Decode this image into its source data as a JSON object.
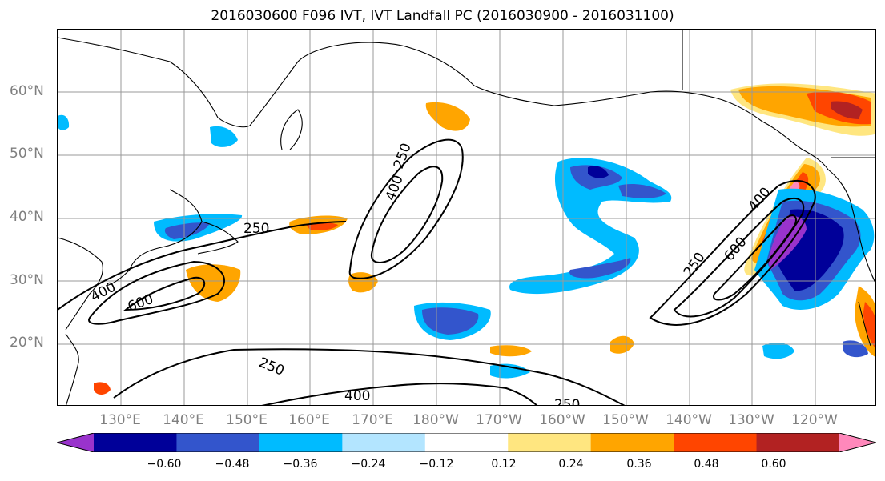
{
  "title": "2016030600 F096 IVT, IVT Landfall PC (2016030900 - 2016031100)",
  "axes": {
    "lat_labels": [
      "60°N",
      "50°N",
      "40°N",
      "30°N",
      "20°N"
    ],
    "lon_labels": [
      "130°E",
      "140°E",
      "150°E",
      "160°E",
      "170°E",
      "180°W",
      "170°W",
      "160°W",
      "150°W",
      "140°W",
      "130°W",
      "120°W"
    ]
  },
  "contours": {
    "labels": [
      "250",
      "400",
      "250",
      "400",
      "600",
      "250",
      "250",
      "400",
      "250",
      "250",
      "600",
      "400"
    ]
  },
  "colorbar": {
    "tick_labels": [
      "−0.60",
      "−0.48",
      "−0.36",
      "−0.24",
      "−0.12",
      "0.12",
      "0.24",
      "0.36",
      "0.48",
      "0.60"
    ],
    "colors": [
      "#9933cc",
      "#000099",
      "#3355cc",
      "#00bbff",
      "#b3e5ff",
      "#ffffff",
      "#ffe680",
      "#ffa500",
      "#ff4500",
      "#b22222",
      "#ff88bb"
    ]
  }
}
